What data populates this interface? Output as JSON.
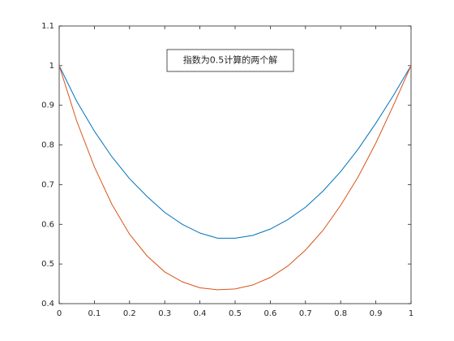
{
  "chart_data": {
    "type": "line",
    "annotation": "指数为0.5计算的两个解",
    "x": [
      0,
      0.05,
      0.1,
      0.15,
      0.2,
      0.25,
      0.3,
      0.35,
      0.4,
      0.45,
      0.5,
      0.55,
      0.6,
      0.65,
      0.7,
      0.75,
      0.8,
      0.85,
      0.9,
      0.95,
      1
    ],
    "series": [
      {
        "color": "#0072bd",
        "values": [
          1.0,
          0.91,
          0.835,
          0.77,
          0.715,
          0.67,
          0.63,
          0.6,
          0.578,
          0.565,
          0.565,
          0.572,
          0.588,
          0.612,
          0.643,
          0.684,
          0.733,
          0.79,
          0.855,
          0.925,
          1.0
        ]
      },
      {
        "color": "#d95319",
        "values": [
          1.0,
          0.86,
          0.745,
          0.65,
          0.575,
          0.52,
          0.48,
          0.455,
          0.44,
          0.435,
          0.437,
          0.447,
          0.466,
          0.495,
          0.535,
          0.585,
          0.648,
          0.72,
          0.805,
          0.9,
          1.0
        ]
      }
    ],
    "xlim": [
      0,
      1
    ],
    "xticks": [
      0,
      0.1,
      0.2,
      0.3,
      0.4,
      0.5,
      0.6,
      0.7,
      0.8,
      0.9,
      1
    ],
    "ylim": [
      0.4,
      1.1
    ],
    "yticks": [
      0.4,
      0.5,
      0.6,
      0.7,
      0.8,
      0.9,
      1,
      1.1
    ],
    "grid": false
  }
}
